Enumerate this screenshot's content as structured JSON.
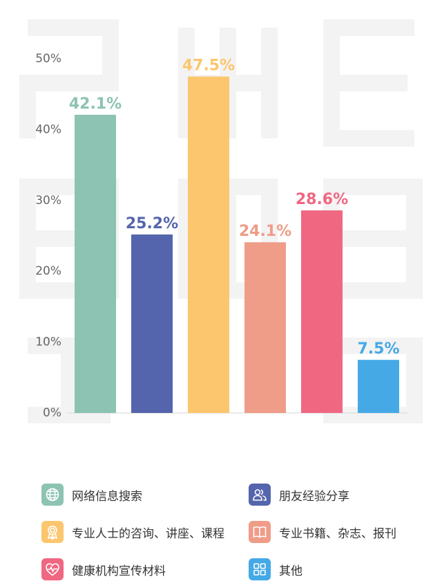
{
  "chart_data": {
    "type": "bar",
    "categories": [
      "网络信息搜索",
      "朋友经验分享",
      "专业人士的咨询、讲座、课程",
      "专业书籍、杂志、报刊",
      "健康机构宣传材料",
      "其他"
    ],
    "values": [
      42.1,
      25.2,
      47.5,
      24.1,
      28.6,
      7.5
    ],
    "value_labels": [
      "42.1%",
      "25.2%",
      "47.5%",
      "24.1%",
      "28.6%",
      "7.5%"
    ],
    "colors": [
      "#8cc3b2",
      "#5565ad",
      "#fbc66e",
      "#ef9c88",
      "#f06782",
      "#45a9e6"
    ],
    "yticks": [
      0,
      10,
      20,
      30,
      40,
      50
    ],
    "ytick_labels": [
      "0%",
      "10%",
      "20%",
      "30%",
      "40%",
      "50%"
    ],
    "ylim": [
      0,
      50
    ],
    "grid": false,
    "legend_position": "bottom"
  },
  "legend": {
    "items": [
      {
        "label": "网络信息搜索",
        "icon": "globe-icon",
        "color": "#8cc3b2"
      },
      {
        "label": "朋友经验分享",
        "icon": "users-icon",
        "color": "#5565ad"
      },
      {
        "label": "专业人士的咨询、讲座、课程",
        "icon": "award-icon",
        "color": "#fbc66e"
      },
      {
        "label": "专业书籍、杂志、报刊",
        "icon": "book-icon",
        "color": "#ef9c88"
      },
      {
        "label": "健康机构宣传材料",
        "icon": "heart-pulse-icon",
        "color": "#f06782"
      },
      {
        "label": "其他",
        "icon": "grid-icon",
        "color": "#45a9e6"
      }
    ]
  }
}
